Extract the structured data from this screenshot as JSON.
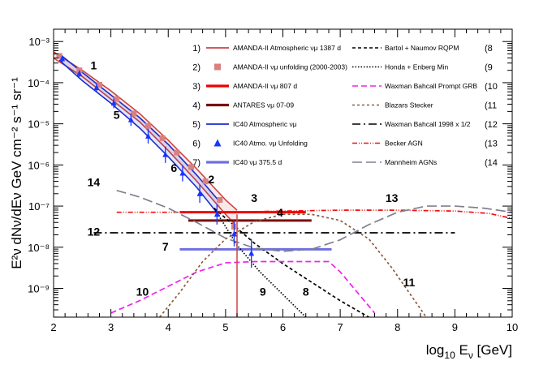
{
  "chart_data": {
    "type": "line",
    "xlabel_main": "log",
    "xlabel_sub": "10",
    "xlabel_rest": " E",
    "xlabel_sub2": "ν",
    "xlabel_unit": " [GeV]",
    "ylabel": "E²ν dNν/dEν GeV cm⁻² s⁻¹ sr⁻¹",
    "xlim": [
      2,
      10
    ],
    "ylim_log10": [
      -9.7,
      -2.7
    ],
    "x_ticks": [
      "2",
      "3",
      "4",
      "5",
      "6",
      "7",
      "8",
      "9",
      "10"
    ],
    "y_ticks": [
      "10⁻⁹",
      "10⁻⁸",
      "10⁻⁷",
      "10⁻⁶",
      "10⁻⁵",
      "10⁻⁴",
      "10⁻³"
    ],
    "y_tick_values_log10": [
      -9,
      -8,
      -7,
      -6,
      -5,
      -4,
      -3
    ],
    "legend_left": [
      {
        "num": "1)",
        "label": "AMANDA-II Atmospheric νμ 1387 d",
        "color": "#cc4444",
        "style": "line"
      },
      {
        "num": "2)",
        "label": "AMANDA-II νμ unfolding (2000-2003)",
        "color": "#d98080",
        "style": "square"
      },
      {
        "num": "3)",
        "label": "AMANDA-II νμ 807 d",
        "color": "#ee0000",
        "style": "thick"
      },
      {
        "num": "4)",
        "label": "ANTARES νμ 07-09",
        "color": "#7a1010",
        "style": "thick"
      },
      {
        "num": "5)",
        "label": "IC40 Atmospheric νμ",
        "color": "#1a2ecc",
        "style": "line"
      },
      {
        "num": "6)",
        "label": "IC40 Atmo. νμ Unfolding",
        "color": "#1a35ff",
        "style": "triangle"
      },
      {
        "num": "7)",
        "label": "IC40 νμ 375.5 d",
        "color": "#6f6fe0",
        "style": "thick"
      }
    ],
    "legend_right": [
      {
        "num": "(8",
        "label": "Bartol + Naumov RQPM",
        "color": "#000000",
        "dash": "4,3"
      },
      {
        "num": "(9",
        "label": "Honda + Enberg Min",
        "color": "#000000",
        "dash": "1.5,2"
      },
      {
        "num": "(10",
        "label": "Waxman Bahcall Prompt GRB",
        "color": "#ee22ee",
        "dash": "7,4"
      },
      {
        "num": "(11",
        "label": "Blazars Stecker",
        "color": "#8b5a3c",
        "dash": "3,3"
      },
      {
        "num": "(12",
        "label": "Waxman Bahcall 1998 x 1/2",
        "color": "#000000",
        "dash": "10,4,2,4"
      },
      {
        "num": "(13",
        "label": "Becker AGN",
        "color": "#ee1111",
        "dash": "6,2,1,2,1,2"
      },
      {
        "num": "(14",
        "label": "Mannheim AGNs",
        "color": "#808090",
        "dash": "12,5"
      }
    ],
    "curve_labels": [
      {
        "text": "1",
        "x": 2.7,
        "y": -3.68
      },
      {
        "text": "5",
        "x": 3.1,
        "y": -4.88
      },
      {
        "text": "6",
        "x": 4.1,
        "y": -6.17
      },
      {
        "text": "2",
        "x": 4.75,
        "y": -6.45
      },
      {
        "text": "3",
        "x": 5.5,
        "y": -6.9
      },
      {
        "text": "4",
        "x": 5.95,
        "y": -7.25
      },
      {
        "text": "13",
        "x": 7.9,
        "y": -6.9
      },
      {
        "text": "14",
        "x": 2.7,
        "y": -6.52
      },
      {
        "text": "12",
        "x": 2.7,
        "y": -7.72
      },
      {
        "text": "7",
        "x": 3.95,
        "y": -8.08
      },
      {
        "text": "10",
        "x": 3.55,
        "y": -9.18
      },
      {
        "text": "9",
        "x": 5.65,
        "y": -9.18
      },
      {
        "text": "8",
        "x": 6.4,
        "y": -9.18
      },
      {
        "text": "11",
        "x": 8.2,
        "y": -8.95
      }
    ],
    "series": [
      {
        "name": "AMANDA-II Atmospheric νμ 1387 d",
        "type": "band",
        "color": "#cc4444",
        "x": [
          2.0,
          2.5,
          3.0,
          3.5,
          4.0,
          4.5,
          5.0,
          5.2
        ],
        "upper": [
          -3.25,
          -3.7,
          -4.2,
          -4.75,
          -5.4,
          -6.1,
          -6.85,
          -7.1
        ],
        "lower": [
          -3.4,
          -3.85,
          -4.4,
          -4.95,
          -5.65,
          -6.4,
          -7.2,
          -7.5
        ]
      },
      {
        "name": "AMANDA-II νμ unfolding (2000-2003)",
        "type": "points",
        "color": "#d98080",
        "x": [
          2.1,
          2.45,
          2.8,
          3.1,
          3.4,
          3.65,
          3.9,
          4.15,
          4.4,
          4.65,
          4.9,
          5.15
        ],
        "y": [
          -3.35,
          -3.7,
          -4.05,
          -4.4,
          -4.75,
          -5.05,
          -5.35,
          -5.7,
          -6.05,
          -6.4,
          -6.85,
          -7.5
        ]
      },
      {
        "name": "AMANDA-II νμ 807 d",
        "type": "hline",
        "color": "#ee0000",
        "x": [
          4.2,
          6.4
        ],
        "y": -7.15
      },
      {
        "name": "ANTARES νμ 07-09",
        "type": "hline",
        "color": "#7a1010",
        "x": [
          4.35,
          6.5
        ],
        "y": -7.35
      },
      {
        "name": "IC40 Atmospheric νμ",
        "type": "band",
        "color": "#1a2ecc",
        "x": [
          2.1,
          2.5,
          3.0,
          3.5,
          4.0,
          4.5,
          4.9
        ],
        "upper": [
          -3.3,
          -3.75,
          -4.3,
          -4.85,
          -5.5,
          -6.25,
          -6.9
        ],
        "lower": [
          -3.45,
          -3.95,
          -4.5,
          -5.1,
          -5.8,
          -6.55,
          -7.25
        ]
      },
      {
        "name": "IC40 Atmo. νμ Unfolding",
        "type": "points",
        "color": "#1a35ff",
        "x": [
          2.15,
          2.45,
          2.75,
          3.05,
          3.35,
          3.65,
          3.95,
          4.25,
          4.55,
          4.85,
          5.15,
          5.45
        ],
        "y": [
          -3.42,
          -3.78,
          -4.12,
          -4.5,
          -4.9,
          -5.3,
          -5.75,
          -6.2,
          -6.7,
          -7.2,
          -7.68,
          -8.15
        ],
        "err": [
          0.08,
          0.08,
          0.1,
          0.12,
          0.15,
          0.18,
          0.2,
          0.2,
          0.22,
          0.25,
          0.3,
          0.35
        ]
      },
      {
        "name": "IC40 νμ 375.5 d",
        "type": "hline",
        "color": "#6f6fe0",
        "x": [
          4.2,
          6.85
        ],
        "y": -8.05
      },
      {
        "name": "Bartol + Naumov RQPM",
        "type": "line",
        "color": "#000000",
        "dash": "4,3",
        "x": [
          4.8,
          5.5,
          6.0,
          6.5,
          7.0,
          7.5
        ],
        "y": [
          -7.05,
          -7.9,
          -8.4,
          -8.85,
          -9.3,
          -9.7
        ]
      },
      {
        "name": "Honda + Enberg Min",
        "type": "line",
        "color": "#000000",
        "dash": "1.5,2",
        "x": [
          4.8,
          5.2,
          5.6,
          6.0,
          6.4
        ],
        "y": [
          -7.05,
          -7.95,
          -8.6,
          -9.15,
          -9.7
        ]
      },
      {
        "name": "Waxman Bahcall Prompt GRB",
        "type": "line",
        "color": "#ee22ee",
        "dash": "7,4",
        "x": [
          3.0,
          3.5,
          4.0,
          4.5,
          5.0,
          5.5,
          6.0,
          6.5,
          6.8,
          7.0,
          7.3,
          7.6
        ],
        "y": [
          -9.6,
          -9.3,
          -8.95,
          -8.6,
          -8.38,
          -8.35,
          -8.35,
          -8.35,
          -8.35,
          -8.6,
          -9.1,
          -9.6
        ]
      },
      {
        "name": "Blazars Stecker",
        "type": "line",
        "color": "#8b5a3c",
        "dash": "3,3",
        "x": [
          3.85,
          4.2,
          4.6,
          5.0,
          5.5,
          6.0,
          6.5,
          7.0,
          7.5,
          7.9,
          8.2,
          8.5
        ],
        "y": [
          -9.7,
          -9.1,
          -8.35,
          -7.8,
          -7.38,
          -7.2,
          -7.2,
          -7.35,
          -7.8,
          -8.5,
          -9.1,
          -9.7
        ]
      },
      {
        "name": "Waxman Bahcall 1998 x 1/2",
        "type": "hline",
        "color": "#000000",
        "dash": "10,4,2,4",
        "x": [
          2.7,
          9.0
        ],
        "y": -7.65
      },
      {
        "name": "Becker AGN",
        "type": "line",
        "color": "#ee1111",
        "dash": "6,2,1,2,1,2",
        "x": [
          3.1,
          4.0,
          5.0,
          6.0,
          7.0,
          8.0,
          9.0,
          9.6,
          10.0
        ],
        "y": [
          -7.15,
          -7.15,
          -7.15,
          -7.12,
          -7.1,
          -7.1,
          -7.12,
          -7.18,
          -7.3
        ]
      },
      {
        "name": "Mannheim AGNs",
        "type": "line",
        "color": "#808090",
        "dash": "12,5",
        "x": [
          3.1,
          3.5,
          4.0,
          4.5,
          5.0,
          5.5,
          6.0,
          6.5,
          7.0,
          7.5,
          8.0,
          8.5,
          9.0,
          9.5,
          10.0
        ],
        "y": [
          -6.62,
          -6.78,
          -7.05,
          -7.4,
          -7.78,
          -8.02,
          -8.1,
          -8.05,
          -7.82,
          -7.45,
          -7.15,
          -7.0,
          -7.0,
          -7.05,
          -7.15
        ]
      }
    ],
    "vertical_line": {
      "x": 5.2,
      "y_top": -7.2,
      "color": "#cc4444"
    }
  }
}
